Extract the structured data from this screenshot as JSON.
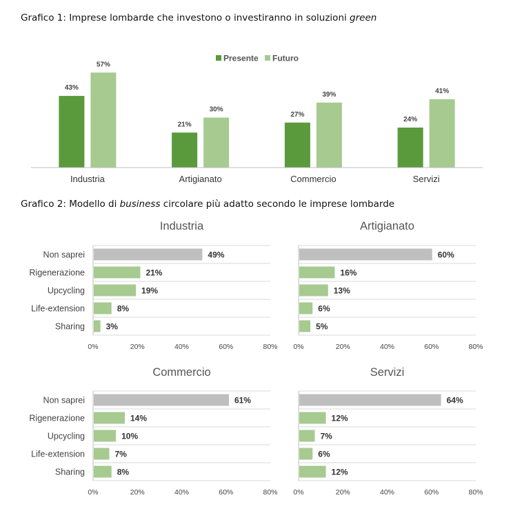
{
  "caption1": {
    "prefix": "Grafico 1: Imprese lombarde che investono o investiranno in soluzioni ",
    "italic": "green",
    "suffix": ""
  },
  "caption2": {
    "prefix": "Grafico 2: Modello di ",
    "italic": "business",
    "suffix": " circolare più adatto secondo le imprese lombarde"
  },
  "colors": {
    "presente": "#5a9a3c",
    "futuro": "#a6ca90",
    "non_saprei": "#bfbfbf",
    "gridline": "#d9d9d9",
    "axis": "#bfbfbf"
  },
  "chart_data": [
    {
      "type": "bar",
      "categories": [
        "Industria",
        "Artigianato",
        "Commercio",
        "Servizi"
      ],
      "series": [
        {
          "name": "Presente",
          "values": [
            43,
            21,
            27,
            24
          ],
          "labels": [
            "43%",
            "21%",
            "27%",
            "24%"
          ]
        },
        {
          "name": "Futuro",
          "values": [
            57,
            30,
            39,
            41
          ],
          "labels": [
            "57%",
            "30%",
            "39%",
            "41%"
          ]
        }
      ],
      "legend": "top-center",
      "ylim": [
        0,
        60
      ]
    },
    {
      "type": "bar",
      "orientation": "horizontal",
      "title": "Industria",
      "categories": [
        "Non saprei",
        "Rigenerazione",
        "Upcycling",
        "Life-extension",
        "Sharing"
      ],
      "values": [
        49,
        21,
        19,
        8,
        3
      ],
      "labels": [
        "49%",
        "21%",
        "19%",
        "8%",
        "3%"
      ],
      "xticks": [
        "0%",
        "20%",
        "40%",
        "60%",
        "80%"
      ],
      "xlim": [
        0,
        80
      ]
    },
    {
      "type": "bar",
      "orientation": "horizontal",
      "title": "Artigianato",
      "categories": [
        "Non saprei",
        "Rigenerazione",
        "Upcycling",
        "Life-extension",
        "Sharing"
      ],
      "values": [
        60,
        16,
        13,
        6,
        5
      ],
      "labels": [
        "60%",
        "16%",
        "13%",
        "6%",
        "5%"
      ],
      "xticks": [
        "0%",
        "20%",
        "40%",
        "60%",
        "80%"
      ],
      "xlim": [
        0,
        80
      ]
    },
    {
      "type": "bar",
      "orientation": "horizontal",
      "title": "Commercio",
      "categories": [
        "Non saprei",
        "Rigenerazione",
        "Upcycling",
        "Life-extension",
        "Sharing"
      ],
      "values": [
        61,
        14,
        10,
        7,
        8
      ],
      "labels": [
        "61%",
        "14%",
        "10%",
        "7%",
        "8%"
      ],
      "xticks": [
        "0%",
        "20%",
        "40%",
        "60%",
        "80%"
      ],
      "xlim": [
        0,
        80
      ]
    },
    {
      "type": "bar",
      "orientation": "horizontal",
      "title": "Servizi",
      "categories": [
        "Non saprei",
        "Rigenerazione",
        "Upcycling",
        "Life-extension",
        "Sharing"
      ],
      "values": [
        64,
        12,
        7,
        6,
        12
      ],
      "labels": [
        "64%",
        "12%",
        "7%",
        "6%",
        "12%"
      ],
      "xticks": [
        "0%",
        "20%",
        "40%",
        "60%",
        "80%"
      ],
      "xlim": [
        0,
        80
      ]
    }
  ]
}
